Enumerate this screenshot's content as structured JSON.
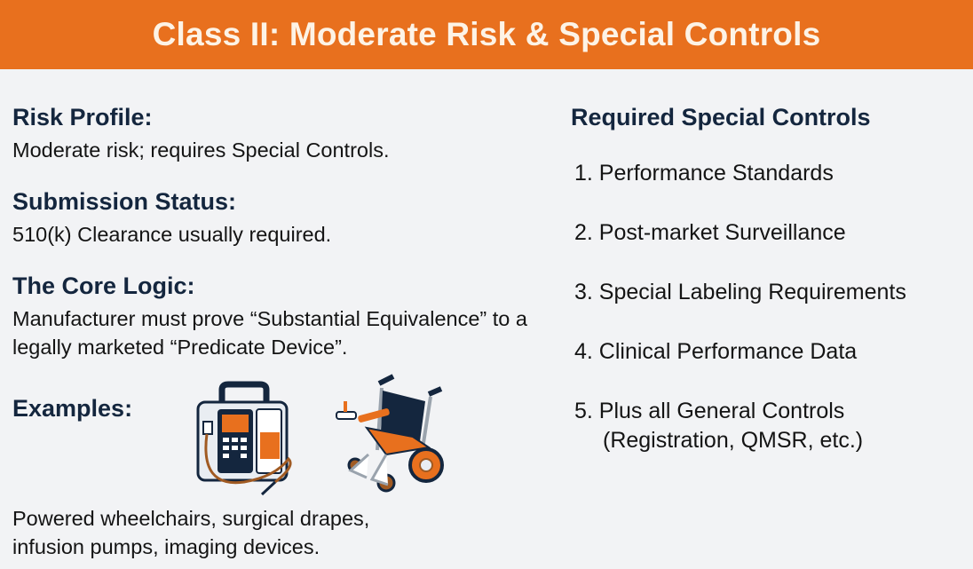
{
  "header": {
    "title": "Class II: Moderate Risk & Special Controls",
    "color": "#e8701e"
  },
  "left": {
    "risk_profile": {
      "heading": "Risk Profile:",
      "text": "Moderate risk; requires Special Controls."
    },
    "submission_status": {
      "heading": "Submission Status:",
      "text": "510(k) Clearance usually required."
    },
    "core_logic": {
      "heading": "The Core Logic:",
      "text": "Manufacturer must prove “Substantial Equivalence” to a legally marketed “Predicate Device”."
    },
    "examples": {
      "heading": "Examples:",
      "text": "Powered wheelchairs, surgical drapes, infusion pumps, imaging devices.",
      "illustrations": [
        "infusion-pump-icon",
        "wheelchair-icon"
      ]
    }
  },
  "right": {
    "heading": "Required Special Controls",
    "items": [
      "1. Performance Standards",
      "2. Post-market Surveillance",
      "3. Special Labeling Requirements",
      "4. Clinical Performance Data",
      "5. Plus all General Controls",
      "(Registration, QMSR, etc.)"
    ]
  }
}
